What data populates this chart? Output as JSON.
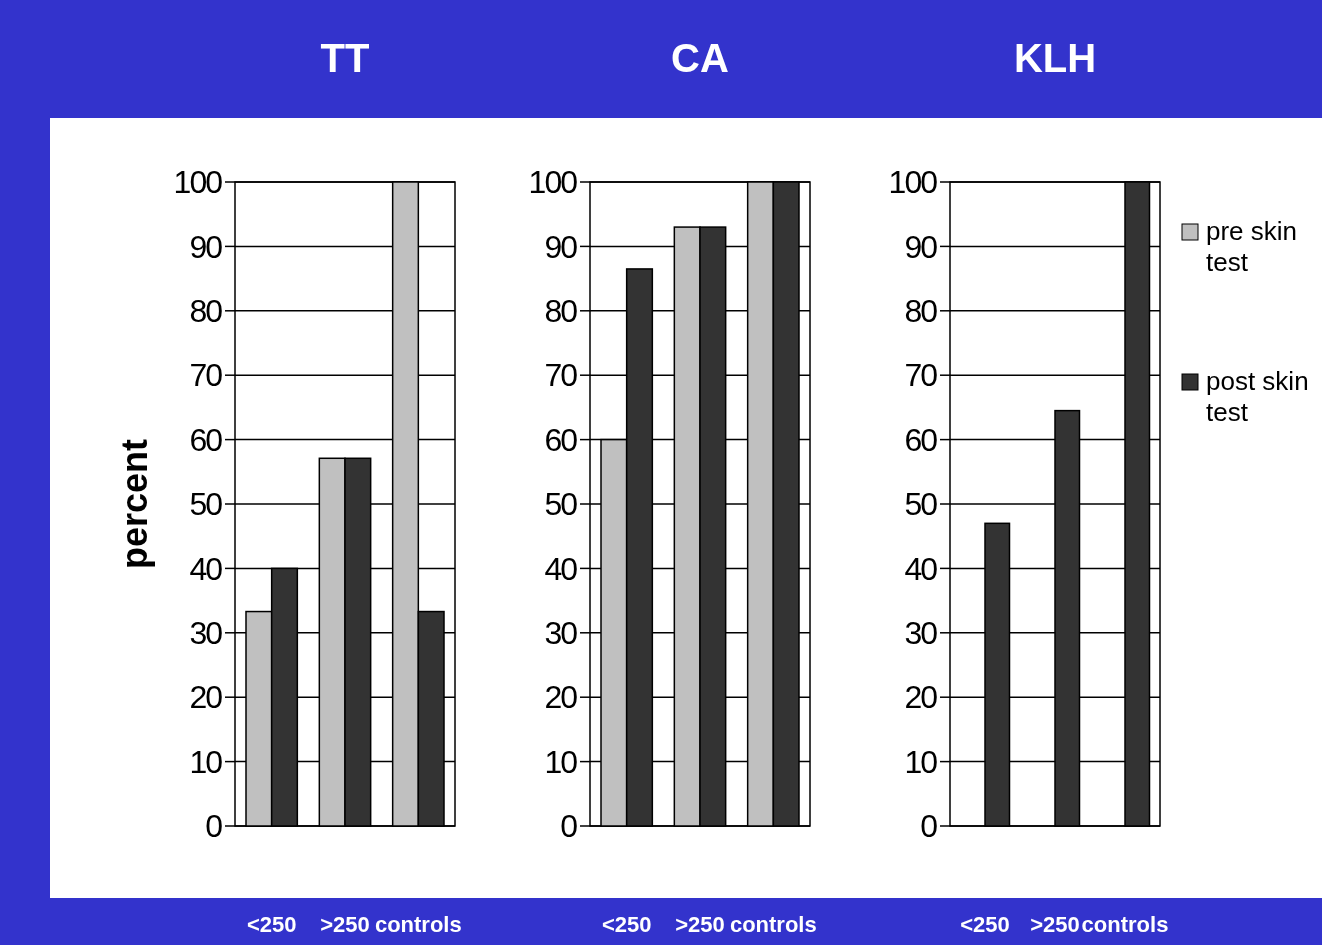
{
  "chart_data": [
    {
      "type": "bar",
      "title": "TT",
      "ylabel": "percent",
      "categories": [
        "<250",
        ">250",
        "controls"
      ],
      "ylim": [
        0,
        100
      ],
      "yticks": [
        0,
        10,
        20,
        30,
        40,
        50,
        60,
        70,
        80,
        90,
        100
      ],
      "grid": "y",
      "series": [
        {
          "color": "#c0c0c0",
          "values": [
            33.3,
            57.1,
            100
          ]
        },
        {
          "color": "#333333",
          "values": [
            40,
            57.1,
            33.3
          ]
        }
      ]
    },
    {
      "type": "bar",
      "title": "CA",
      "categories": [
        "<250",
        ">250",
        "controls"
      ],
      "ylim": [
        0,
        100
      ],
      "yticks": [
        0,
        10,
        20,
        30,
        40,
        50,
        60,
        70,
        80,
        90,
        100
      ],
      "grid": "y",
      "series": [
        {
          "color": "#c0c0c0",
          "values": [
            60,
            93,
            100
          ]
        },
        {
          "color": "#333333",
          "values": [
            86.5,
            93,
            100
          ]
        }
      ]
    },
    {
      "type": "bar",
      "title": "KLH",
      "categories": [
        "<250",
        ">250",
        "controls"
      ],
      "ylim": [
        0,
        100
      ],
      "yticks": [
        0,
        10,
        20,
        30,
        40,
        50,
        60,
        70,
        80,
        90,
        100
      ],
      "grid": "y",
      "legend": "right",
      "series": [
        {
          "name": "pre skin test",
          "color": "#c0c0c0",
          "values": [
            0,
            0,
            0
          ]
        },
        {
          "name": "post skin test",
          "color": "#333333",
          "values": [
            47,
            64.5,
            100
          ]
        }
      ]
    }
  ]
}
